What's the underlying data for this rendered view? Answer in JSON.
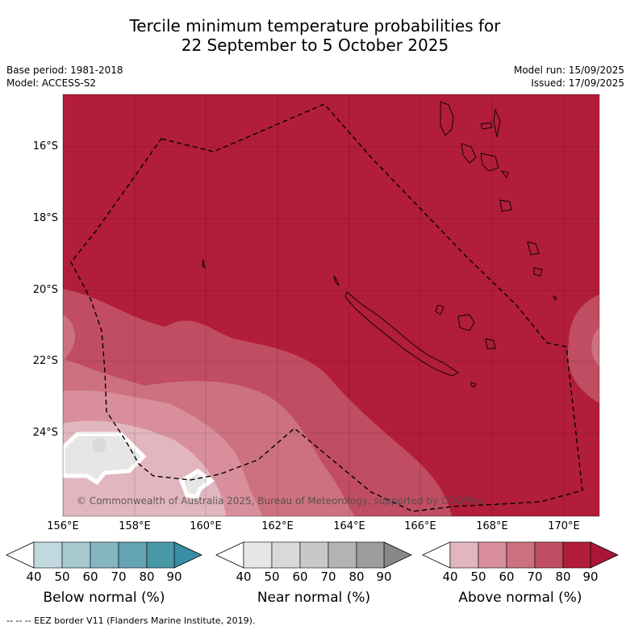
{
  "title": {
    "line1": "Tercile minimum temperature probabilities for",
    "line2": "22 September to 5 October 2025"
  },
  "meta": {
    "base_period": "Base period: 1981-2018",
    "model": "Model: ACCESS-S2",
    "model_run": "Model run: 15/09/2025",
    "issued": "Issued: 17/09/2025"
  },
  "map": {
    "lon_ticks": [
      "156°E",
      "158°E",
      "160°E",
      "162°E",
      "164°E",
      "166°E",
      "168°E",
      "170°E"
    ],
    "lat_ticks": [
      "16°S",
      "18°S",
      "20°S",
      "22°S",
      "24°S"
    ],
    "copyright": "© Commonwealth of Australia 2025, Bureau of Meteorology, supported by COSPPac"
  },
  "colorbars": [
    {
      "label": "Below normal (%)",
      "ticks": [
        "40",
        "50",
        "60",
        "70",
        "80",
        "90"
      ],
      "colors": [
        "#ffffff",
        "#c2d8df",
        "#a5c9cf",
        "#85b5c0",
        "#64a3b1",
        "#4898a8",
        "#3a8ea4"
      ]
    },
    {
      "label": "Near normal (%)",
      "ticks": [
        "40",
        "50",
        "60",
        "70",
        "80",
        "90"
      ],
      "colors": [
        "#ffffff",
        "#e6e6e6",
        "#d9d9d9",
        "#c8c8c8",
        "#b4b4b4",
        "#9c9c9c",
        "#888888"
      ]
    },
    {
      "label": "Above normal (%)",
      "ticks": [
        "40",
        "50",
        "60",
        "70",
        "80",
        "90"
      ],
      "colors": [
        "#ffffff",
        "#e2b6bf",
        "#d88f9b",
        "#cd717f",
        "#c14d62",
        "#b21d3a",
        "#a8173a"
      ]
    }
  ],
  "footer": "-- -- -- EEZ border V11 (Flanders Marine Institute, 2019)."
}
